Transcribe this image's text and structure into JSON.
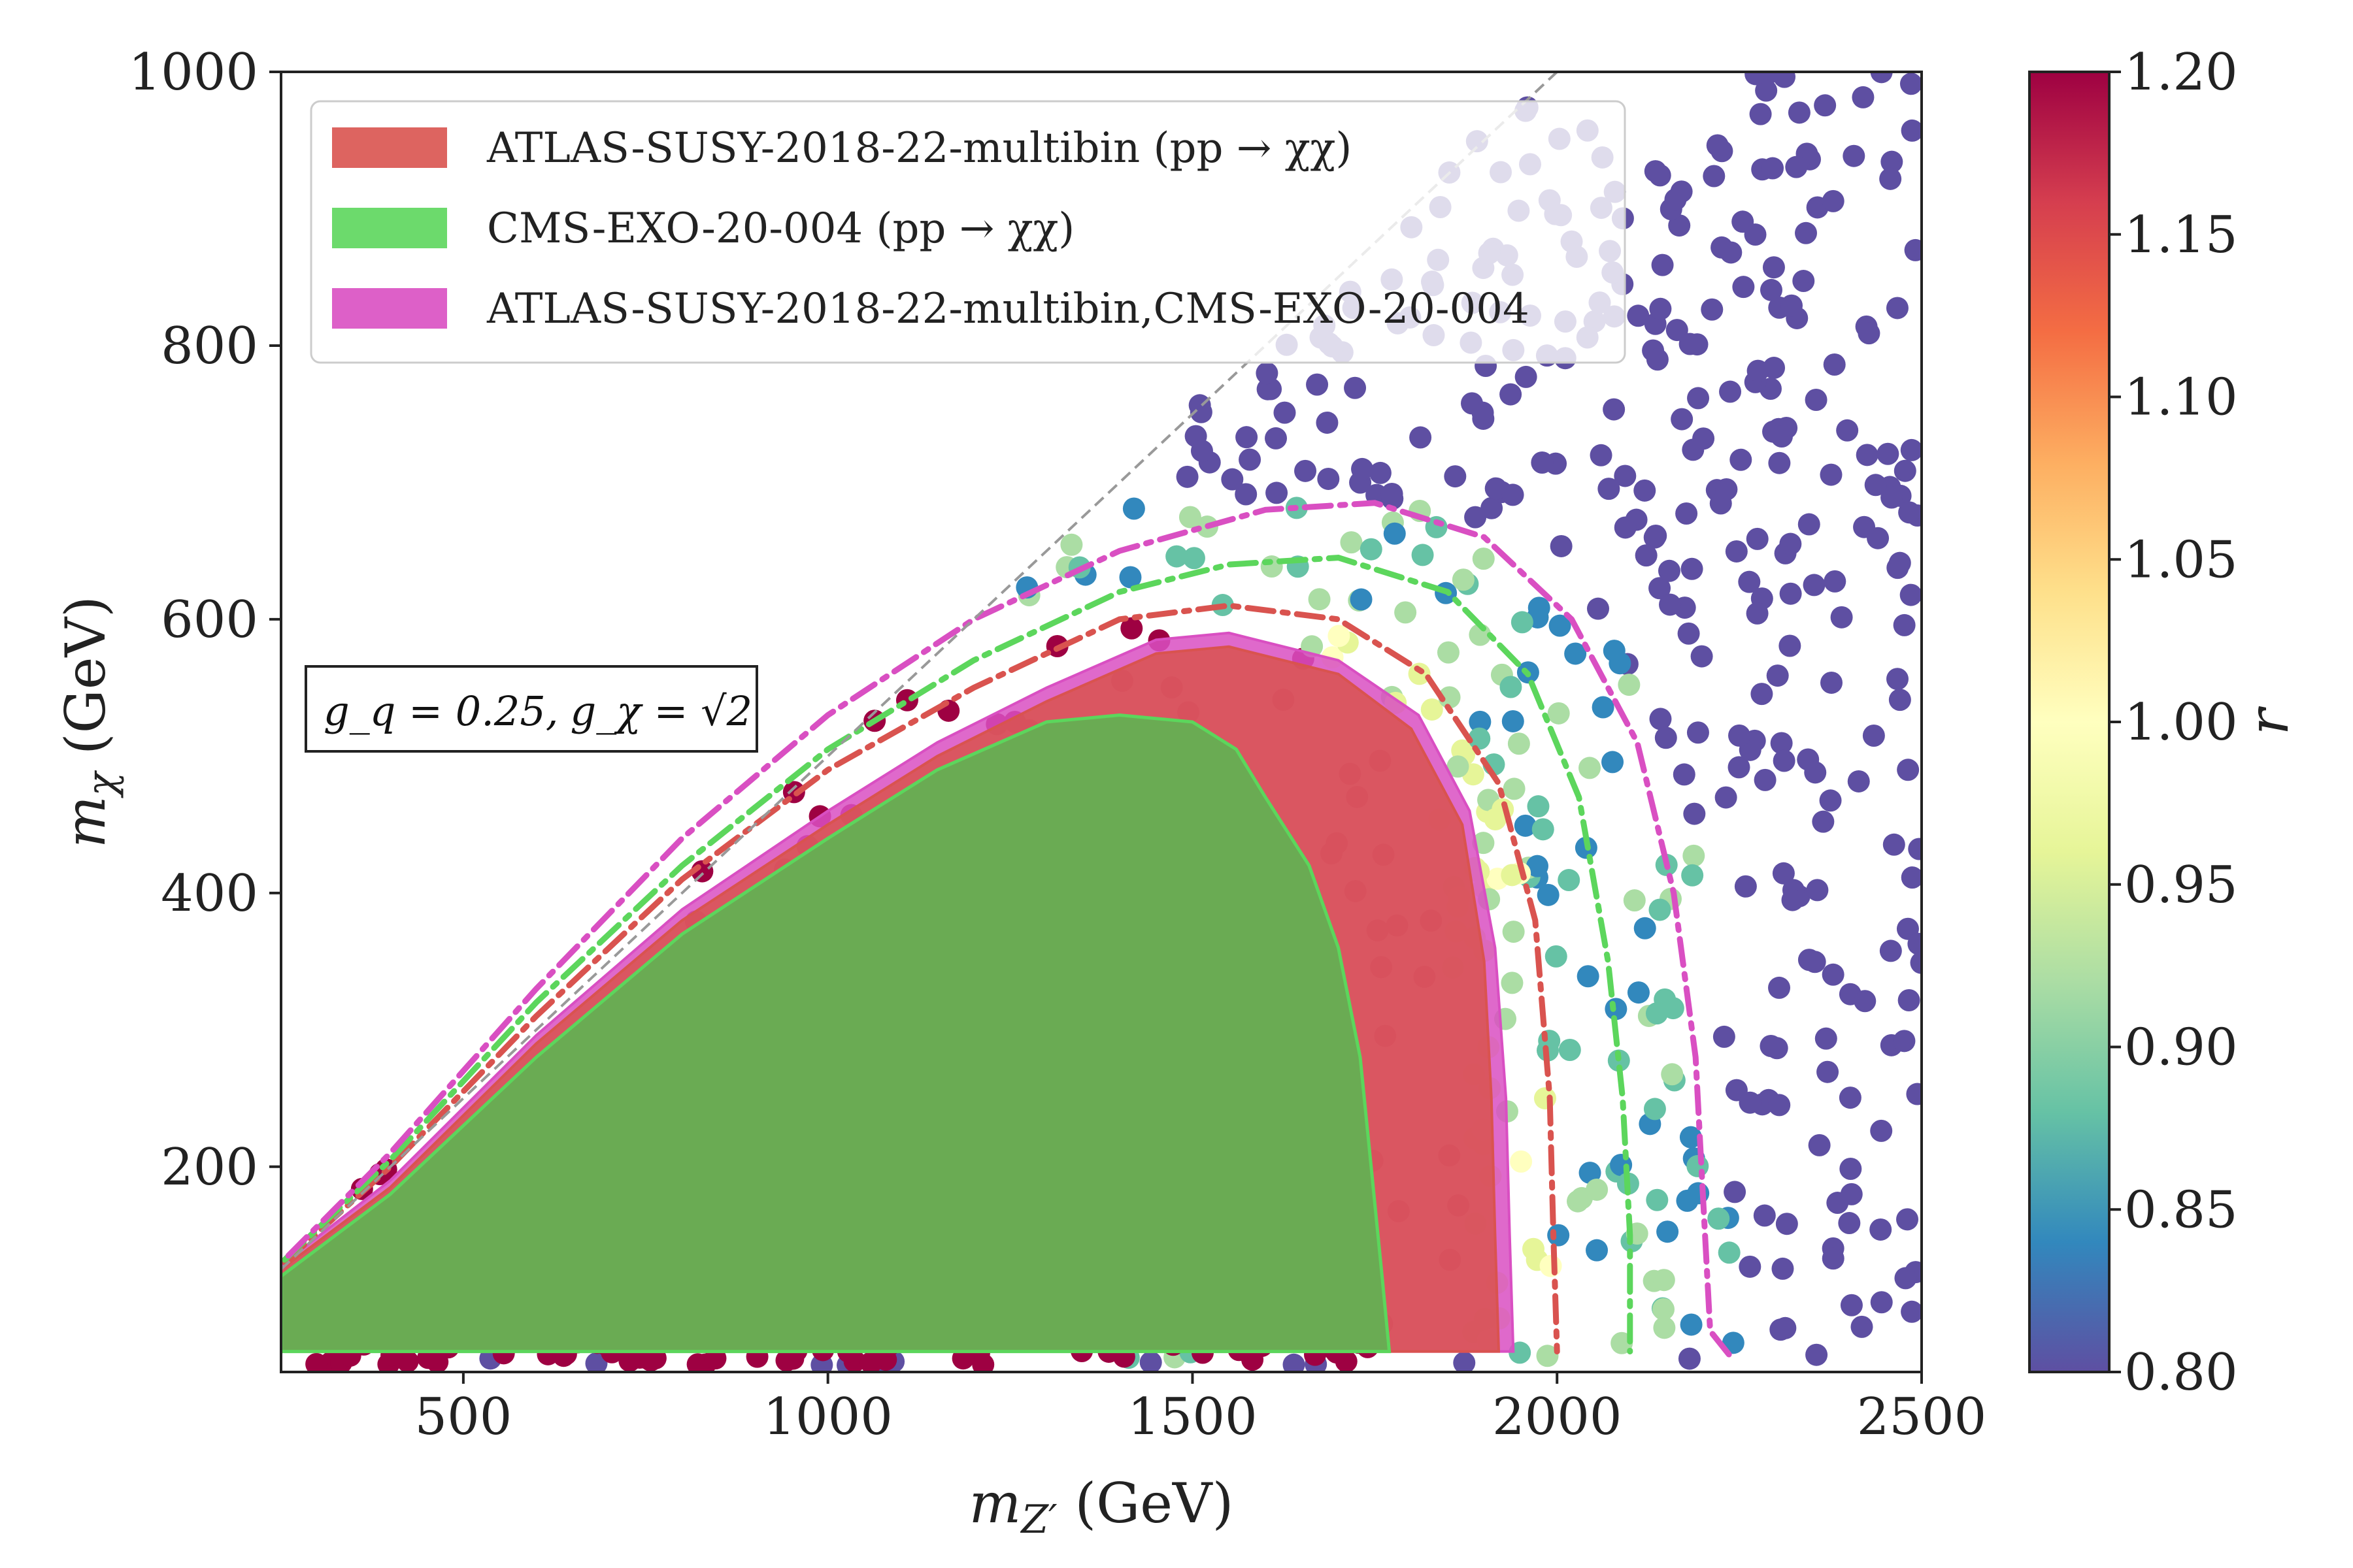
{
  "chart_data": {
    "type": "scatter",
    "title": "",
    "xlabel": "m_Z′ (GeV)",
    "xlabel_parts": {
      "sym": "m",
      "sub": "Z′",
      "unit": " (GeV)"
    },
    "ylabel": "m_χ (GeV)",
    "ylabel_parts": {
      "sym": "m",
      "sub": "χ",
      "unit": " (GeV)"
    },
    "xlim": [
      250,
      2500
    ],
    "ylim": [
      50,
      1000
    ],
    "xticks": [
      500,
      1000,
      1500,
      2000,
      2500
    ],
    "yticks": [
      200,
      400,
      600,
      800,
      1000
    ],
    "grid": false,
    "legend_position": "top-left",
    "annotation": {
      "label": "g_q = 0.25, g_χ = √2",
      "gq": "g_q = 0.25,",
      "gchi": "g_χ = √2"
    },
    "colorbar": {
      "label": "r",
      "min": 0.8,
      "max": 1.2,
      "ticks": [
        "0.80",
        "0.85",
        "0.90",
        "0.95",
        "1.00",
        "1.05",
        "1.10",
        "1.15",
        "1.20"
      ],
      "colormap": "Spectral_r"
    },
    "diagonal": {
      "points": [
        [
          250,
          125
        ],
        [
          2500,
          1250
        ]
      ],
      "style": "dashed",
      "color": "#999999"
    },
    "series": [
      {
        "name": "ATLAS-SUSY-2018-22-multibin (pp → χχ)",
        "legend": "ATLAS-SUSY-2018-22-multibin (pp → χχ)",
        "kind": "filled_excluded_region",
        "color": "#d9534f",
        "boundary": [
          [
            250,
            65
          ],
          [
            250,
            125
          ],
          [
            400,
            185
          ],
          [
            600,
            290
          ],
          [
            800,
            380
          ],
          [
            1000,
            450
          ],
          [
            1150,
            500
          ],
          [
            1300,
            540
          ],
          [
            1450,
            575
          ],
          [
            1550,
            580
          ],
          [
            1700,
            560
          ],
          [
            1800,
            520
          ],
          [
            1870,
            450
          ],
          [
            1900,
            350
          ],
          [
            1910,
            250
          ],
          [
            1915,
            150
          ],
          [
            1920,
            65
          ]
        ]
      },
      {
        "name": "CMS-EXO-20-004 (pp → χχ)",
        "legend": "CMS-EXO-20-004 (pp → χχ)",
        "kind": "filled_excluded_region",
        "color": "#5cd65c",
        "boundary": [
          [
            250,
            65
          ],
          [
            250,
            120
          ],
          [
            400,
            180
          ],
          [
            600,
            280
          ],
          [
            800,
            370
          ],
          [
            1000,
            440
          ],
          [
            1150,
            490
          ],
          [
            1300,
            525
          ],
          [
            1400,
            530
          ],
          [
            1500,
            525
          ],
          [
            1560,
            505
          ],
          [
            1600,
            470
          ],
          [
            1660,
            420
          ],
          [
            1700,
            360
          ],
          [
            1730,
            280
          ],
          [
            1745,
            200
          ],
          [
            1760,
            120
          ],
          [
            1770,
            65
          ]
        ]
      },
      {
        "name": "ATLAS-SUSY-2018-22-multibin,CMS-EXO-20-004",
        "legend": "ATLAS-SUSY-2018-22-multibin,CMS-EXO-20-004",
        "kind": "filled_excluded_region",
        "color": "#d94fc2",
        "boundary": [
          [
            250,
            65
          ],
          [
            250,
            128
          ],
          [
            400,
            190
          ],
          [
            600,
            296
          ],
          [
            800,
            388
          ],
          [
            1000,
            460
          ],
          [
            1150,
            510
          ],
          [
            1300,
            550
          ],
          [
            1450,
            585
          ],
          [
            1550,
            590
          ],
          [
            1700,
            570
          ],
          [
            1810,
            530
          ],
          [
            1880,
            460
          ],
          [
            1915,
            360
          ],
          [
            1930,
            250
          ],
          [
            1935,
            150
          ],
          [
            1940,
            65
          ]
        ]
      },
      {
        "name": "expected ATLAS",
        "kind": "dashdot_contour",
        "color": "#d9534f",
        "boundary": [
          [
            255,
            130
          ],
          [
            400,
            200
          ],
          [
            600,
            310
          ],
          [
            800,
            410
          ],
          [
            1000,
            490
          ],
          [
            1200,
            550
          ],
          [
            1400,
            600
          ],
          [
            1550,
            610
          ],
          [
            1700,
            600
          ],
          [
            1820,
            560
          ],
          [
            1920,
            480
          ],
          [
            1970,
            380
          ],
          [
            1990,
            250
          ],
          [
            1995,
            150
          ],
          [
            2000,
            65
          ]
        ]
      },
      {
        "name": "expected CMS",
        "kind": "dashdot_contour",
        "color": "#5cd65c",
        "boundary": [
          [
            255,
            132
          ],
          [
            400,
            205
          ],
          [
            600,
            320
          ],
          [
            800,
            420
          ],
          [
            1000,
            505
          ],
          [
            1200,
            570
          ],
          [
            1400,
            620
          ],
          [
            1550,
            640
          ],
          [
            1700,
            645
          ],
          [
            1850,
            620
          ],
          [
            1960,
            560
          ],
          [
            2030,
            470
          ],
          [
            2070,
            350
          ],
          [
            2090,
            250
          ],
          [
            2100,
            150
          ],
          [
            2100,
            65
          ]
        ]
      },
      {
        "name": "expected combined",
        "kind": "dashdot_contour",
        "color": "#d94fc2",
        "boundary": [
          [
            260,
            135
          ],
          [
            400,
            210
          ],
          [
            600,
            330
          ],
          [
            800,
            440
          ],
          [
            1000,
            530
          ],
          [
            1200,
            600
          ],
          [
            1400,
            650
          ],
          [
            1600,
            680
          ],
          [
            1750,
            685
          ],
          [
            1900,
            660
          ],
          [
            2020,
            600
          ],
          [
            2110,
            510
          ],
          [
            2160,
            400
          ],
          [
            2190,
            280
          ],
          [
            2200,
            180
          ],
          [
            2210,
            80
          ],
          [
            2240,
            60
          ]
        ]
      }
    ]
  }
}
